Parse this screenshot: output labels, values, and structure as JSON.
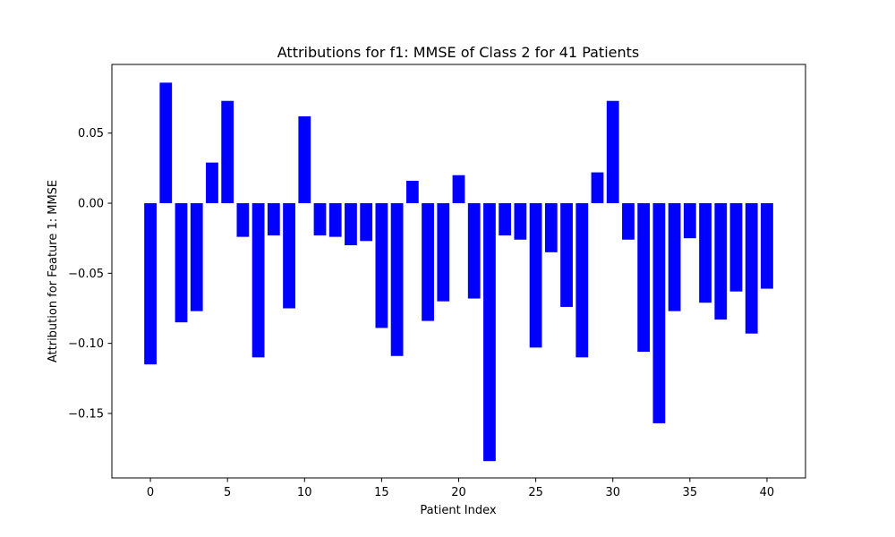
{
  "chart_data": {
    "type": "bar",
    "title": "Attributions for f1: MMSE of Class 2 for 41 Patients",
    "xlabel": "Patient Index",
    "ylabel": "Attribution for Feature 1: MMSE",
    "xlim": [
      -2.5,
      42.5
    ],
    "ylim": [
      -0.196,
      0.099
    ],
    "x_ticks": [
      0,
      5,
      10,
      15,
      20,
      25,
      30,
      35,
      40
    ],
    "x_tick_labels": [
      "0",
      "5",
      "10",
      "15",
      "20",
      "25",
      "30",
      "35",
      "40"
    ],
    "y_ticks": [
      0.05,
      0.0,
      -0.05,
      -0.1,
      -0.15
    ],
    "y_tick_labels": [
      "0.05",
      "0.00",
      "−0.05",
      "−0.10",
      "−0.15"
    ],
    "grid": false,
    "bar_color": "#0000ff",
    "x": [
      0,
      1,
      2,
      3,
      4,
      5,
      6,
      7,
      8,
      9,
      10,
      11,
      12,
      13,
      14,
      15,
      16,
      17,
      18,
      19,
      20,
      21,
      22,
      23,
      24,
      25,
      26,
      27,
      28,
      29,
      30,
      31,
      32,
      33,
      34,
      35,
      36,
      37,
      38,
      39,
      40
    ],
    "values": [
      -0.115,
      0.086,
      -0.085,
      -0.077,
      0.029,
      0.073,
      -0.024,
      -0.11,
      -0.023,
      -0.075,
      0.062,
      -0.023,
      -0.024,
      -0.03,
      -0.027,
      -0.089,
      -0.109,
      0.016,
      -0.084,
      -0.07,
      0.02,
      -0.068,
      -0.184,
      -0.023,
      -0.026,
      -0.103,
      -0.035,
      -0.074,
      -0.11,
      0.022,
      0.073,
      -0.026,
      -0.106,
      -0.157,
      -0.077,
      -0.025,
      -0.071,
      -0.083,
      -0.063,
      -0.093,
      -0.061
    ]
  }
}
